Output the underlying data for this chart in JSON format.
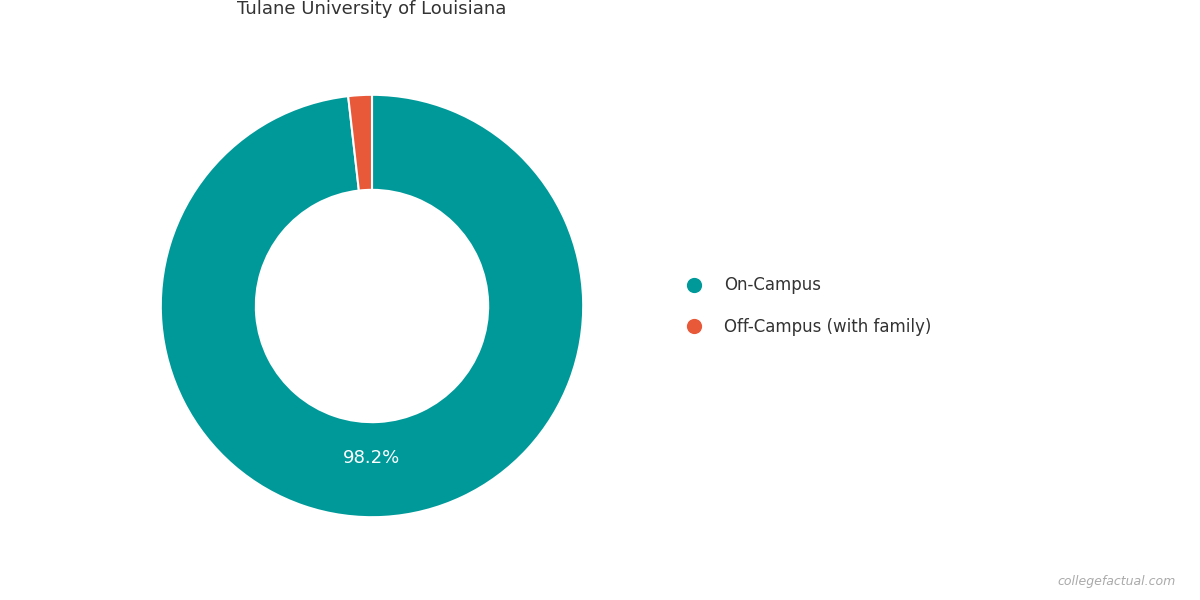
{
  "slices": [
    98.2,
    1.8
  ],
  "labels": [
    "On-Campus",
    "Off-Campus (with family)"
  ],
  "colors": [
    "#00999A",
    "#E8593A"
  ],
  "label_text": "98.2%",
  "label_color": "white",
  "background_color": "#ffffff",
  "watermark": "collegefactual.com",
  "title_fontsize": 13,
  "legend_fontsize": 12,
  "donut_width": 0.45,
  "startangle": 90,
  "label_fontsize": 13
}
